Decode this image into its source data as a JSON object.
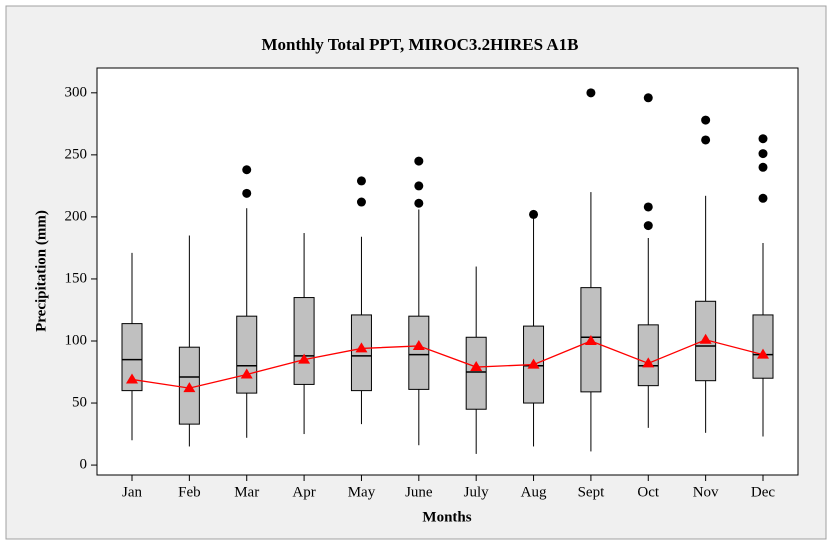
{
  "chart_data": {
    "type": "box",
    "title": "Monthly Total PPT, MIROC3.2HIRES A1B",
    "x_label": "Months",
    "y_label": "Precipitation (mm)",
    "categories": [
      "Jan",
      "Feb",
      "Mar",
      "Apr",
      "May",
      "June",
      "July",
      "Aug",
      "Sept",
      "Oct",
      "Nov",
      "Dec"
    ],
    "whisker_low": [
      20,
      15,
      22,
      25,
      33,
      16,
      9,
      15,
      11,
      30,
      26,
      23
    ],
    "q1": [
      60,
      33,
      58,
      65,
      60,
      61,
      45,
      50,
      59,
      64,
      68,
      70
    ],
    "median": [
      85,
      71,
      80,
      88,
      88,
      89,
      75,
      80,
      103,
      80,
      96,
      89
    ],
    "q3": [
      114,
      95,
      120,
      135,
      121,
      120,
      103,
      112,
      143,
      113,
      132,
      121
    ],
    "whisker_high": [
      171,
      185,
      207,
      187,
      184,
      206,
      160,
      199,
      220,
      183,
      217,
      179
    ],
    "mean": [
      69,
      62,
      73,
      85,
      94,
      96,
      79,
      81,
      100,
      82,
      101,
      89
    ],
    "outliers": [
      [],
      [],
      [
        219,
        238
      ],
      [],
      [
        212,
        229
      ],
      [
        211,
        225,
        245
      ],
      [],
      [
        202
      ],
      [
        300
      ],
      [
        193,
        208,
        296
      ],
      [
        262,
        278
      ],
      [
        215,
        240,
        251,
        263
      ]
    ],
    "box_color": "#c0c0c0",
    "mean_color": "#ff0000",
    "outlier_color": "#000000",
    "ylim": [
      -8,
      320
    ],
    "yticks": [
      0,
      50,
      100,
      150,
      200,
      250,
      300
    ]
  }
}
